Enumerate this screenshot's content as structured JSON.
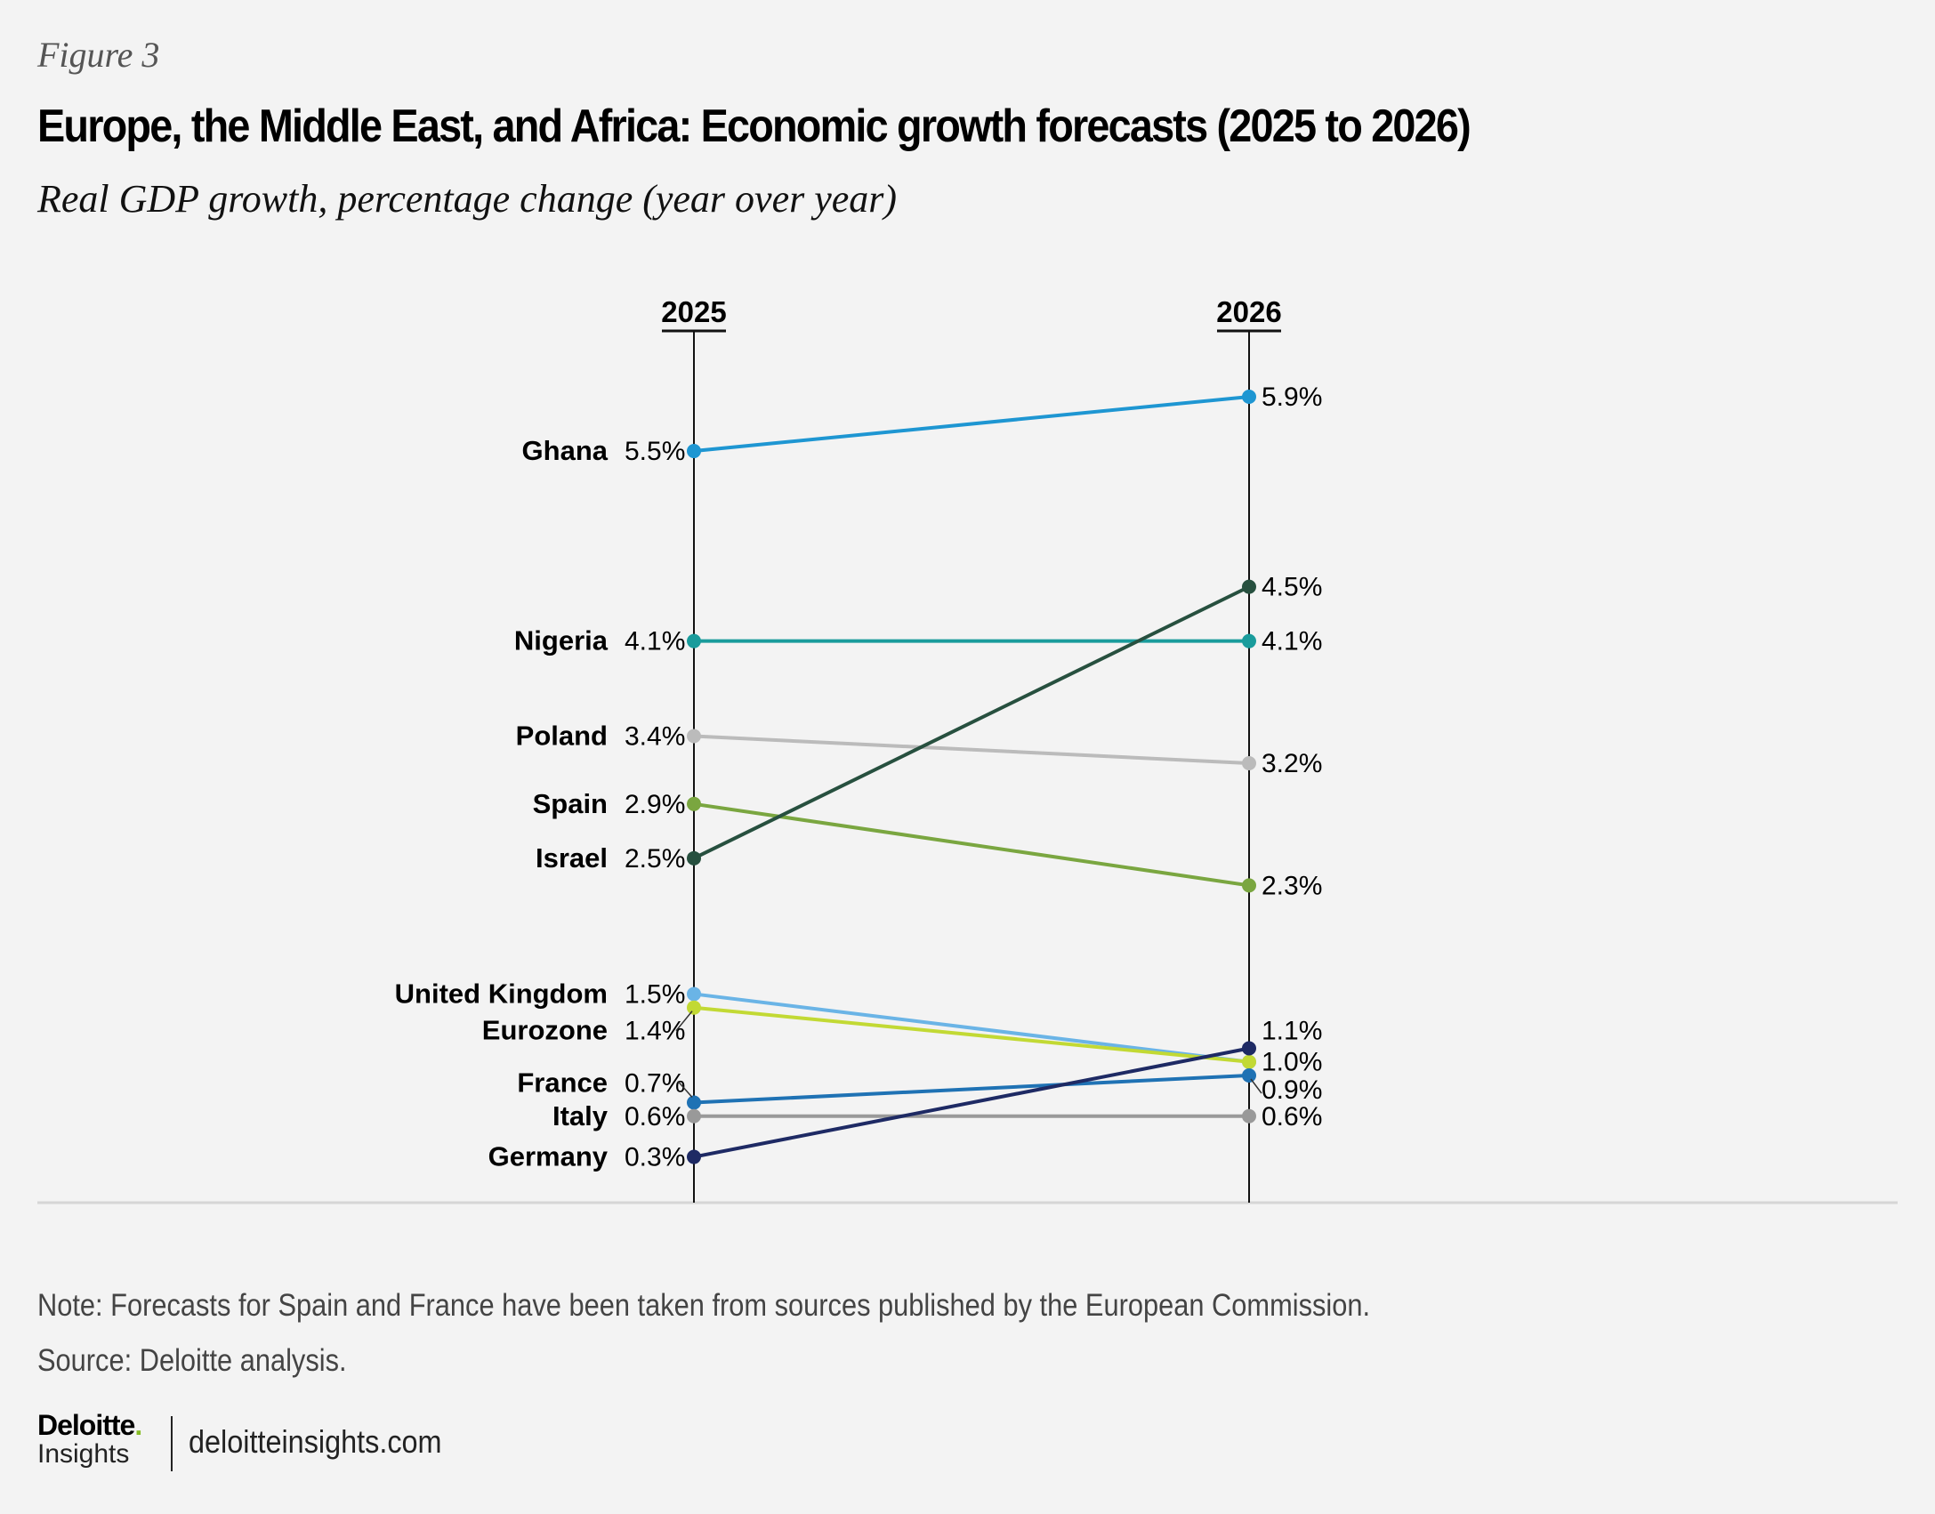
{
  "figure_label": "Figure 3",
  "title": "Europe, the Middle East, and Africa: Economic growth forecasts (2025 to 2026)",
  "subtitle": "Real GDP growth, percentage change (year over year)",
  "note": "Note: Forecasts for Spain and France have been taken from sources published by the European Commission.",
  "source": "Source: Deloitte analysis.",
  "footer": {
    "logo_top": "Deloitte",
    "logo_dot": ".",
    "logo_bottom": "Insights",
    "site": "deloitteinsights.com"
  },
  "chart_data": {
    "type": "line",
    "subtype": "slope",
    "title": "Europe, the Middle East, and Africa: Economic growth forecasts (2025 to 2026)",
    "ylabel": "Real GDP growth, percentage change (year over year)",
    "x": [
      "2025",
      "2026"
    ],
    "unit": "%",
    "series": [
      {
        "name": "Ghana",
        "values": [
          5.5,
          5.9
        ],
        "color": "#1e96d2"
      },
      {
        "name": "Nigeria",
        "values": [
          4.1,
          4.1
        ],
        "color": "#1a9c9c"
      },
      {
        "name": "Poland",
        "values": [
          3.4,
          3.2
        ],
        "color": "#bbbbbb"
      },
      {
        "name": "Spain",
        "values": [
          2.9,
          2.3
        ],
        "color": "#7aa640"
      },
      {
        "name": "Israel",
        "values": [
          2.5,
          4.5
        ],
        "color": "#27503f"
      },
      {
        "name": "United Kingdom",
        "values": [
          1.5,
          1.0
        ],
        "color": "#6ab4e6"
      },
      {
        "name": "Eurozone",
        "values": [
          1.4,
          1.0
        ],
        "color": "#c2d934"
      },
      {
        "name": "France",
        "values": [
          0.7,
          0.9
        ],
        "color": "#1f72b4"
      },
      {
        "name": "Italy",
        "values": [
          0.6,
          0.6
        ],
        "color": "#999999"
      },
      {
        "name": "Germany",
        "values": [
          0.3,
          1.1
        ],
        "color": "#1e2a64"
      }
    ],
    "labels_2025": [
      "5.5%",
      "4.1%",
      "3.4%",
      "2.9%",
      "2.5%",
      "1.5%",
      "1.4%",
      "0.7%",
      "0.6%",
      "0.3%"
    ],
    "labels_2026": [
      "5.9%",
      "4.1%",
      "3.2%",
      "2.3%",
      "4.5%",
      "1.0%",
      "1.0%",
      "0.9%",
      "0.6%",
      "1.1%"
    ],
    "ylim": [
      0.3,
      5.9
    ],
    "grid": false,
    "legend": "none"
  }
}
